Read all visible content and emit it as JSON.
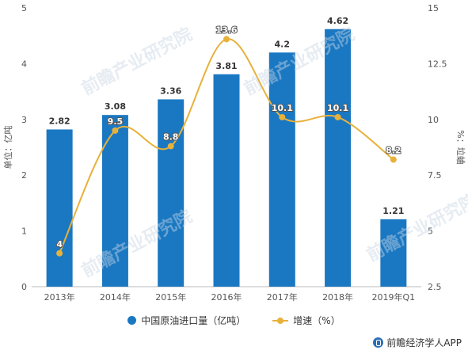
{
  "chart_data": {
    "type": "bar+line",
    "categories": [
      "2013年",
      "2014年",
      "2015年",
      "2016年",
      "2017年",
      "2018年",
      "2019年Q1"
    ],
    "series": [
      {
        "name": "中国原油进口量（亿吨）",
        "type": "bar",
        "axis": "left",
        "values": [
          2.82,
          3.08,
          3.36,
          3.81,
          4.2,
          4.62,
          1.21
        ],
        "labels": [
          "2.82",
          "3.08",
          "3.36",
          "3.81",
          "4.2",
          "4.62",
          "1.21"
        ]
      },
      {
        "name": "增速（%）",
        "type": "line",
        "axis": "right",
        "values": [
          4,
          9.5,
          8.8,
          13.6,
          10.1,
          10.1,
          8.2
        ],
        "labels": [
          "4",
          "9.5",
          "8.8",
          "13.6",
          "10.1",
          "10.1",
          "8.2"
        ]
      }
    ],
    "yleft": {
      "label": "单位：亿吨",
      "lim": [
        0,
        5
      ],
      "ticks": [
        "0",
        "1",
        "2",
        "3",
        "4",
        "5"
      ]
    },
    "yright": {
      "label": "%：垃蛐",
      "lim": [
        2.5,
        15
      ],
      "ticks": [
        "2.5",
        "5",
        "7.5",
        "10",
        "12.5",
        "15"
      ]
    },
    "legend_position": "bottom",
    "colors": {
      "bar": "#1a78c2",
      "line": "#e8b13b"
    }
  },
  "watermark": "前瞻产业研究院",
  "footer": "前瞻经济学人APP"
}
